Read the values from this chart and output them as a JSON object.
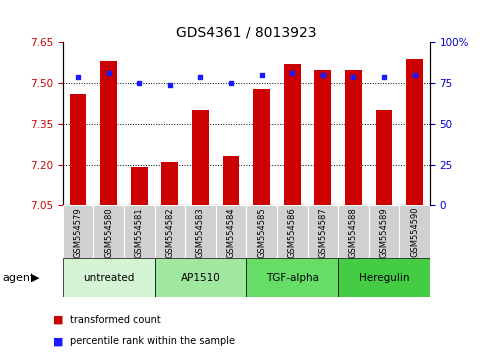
{
  "title": "GDS4361 / 8013923",
  "samples": [
    "GSM554579",
    "GSM554580",
    "GSM554581",
    "GSM554582",
    "GSM554583",
    "GSM554584",
    "GSM554585",
    "GSM554586",
    "GSM554587",
    "GSM554588",
    "GSM554589",
    "GSM554590"
  ],
  "bar_values": [
    7.46,
    7.58,
    7.19,
    7.21,
    7.4,
    7.23,
    7.48,
    7.57,
    7.55,
    7.55,
    7.4,
    7.59
  ],
  "percentile_values": [
    79,
    81,
    75,
    74,
    79,
    75,
    80,
    81,
    80,
    79,
    79,
    80
  ],
  "ylim_left": [
    7.05,
    7.65
  ],
  "ylim_right": [
    0,
    100
  ],
  "yticks_left": [
    7.05,
    7.2,
    7.35,
    7.5,
    7.65
  ],
  "yticks_right": [
    0,
    25,
    50,
    75,
    100
  ],
  "ytick_labels_right": [
    "0",
    "25",
    "50",
    "75",
    "100%"
  ],
  "gridlines": [
    7.2,
    7.35,
    7.5
  ],
  "bar_color": "#cc0000",
  "dot_color": "#1a1aff",
  "bar_bottom": 7.05,
  "agent_groups": [
    {
      "label": "untreated",
      "start": 0,
      "end": 3,
      "color": "#d4f5d4"
    },
    {
      "label": "AP1510",
      "start": 3,
      "end": 6,
      "color": "#a0e8a0"
    },
    {
      "label": "TGF-alpha",
      "start": 6,
      "end": 9,
      "color": "#66dd66"
    },
    {
      "label": "Heregulin",
      "start": 9,
      "end": 12,
      "color": "#44cc44"
    }
  ],
  "agent_label": "agent",
  "legend_bar_label": "transformed count",
  "legend_dot_label": "percentile rank within the sample",
  "title_fontsize": 10,
  "tick_fontsize": 7.5,
  "label_fontsize": 6,
  "background_color": "#ffffff",
  "plot_bg_color": "#ffffff",
  "tick_color_left": "#cc0000",
  "tick_color_right": "#0000cc",
  "gray_bg": "#d0d0d0"
}
